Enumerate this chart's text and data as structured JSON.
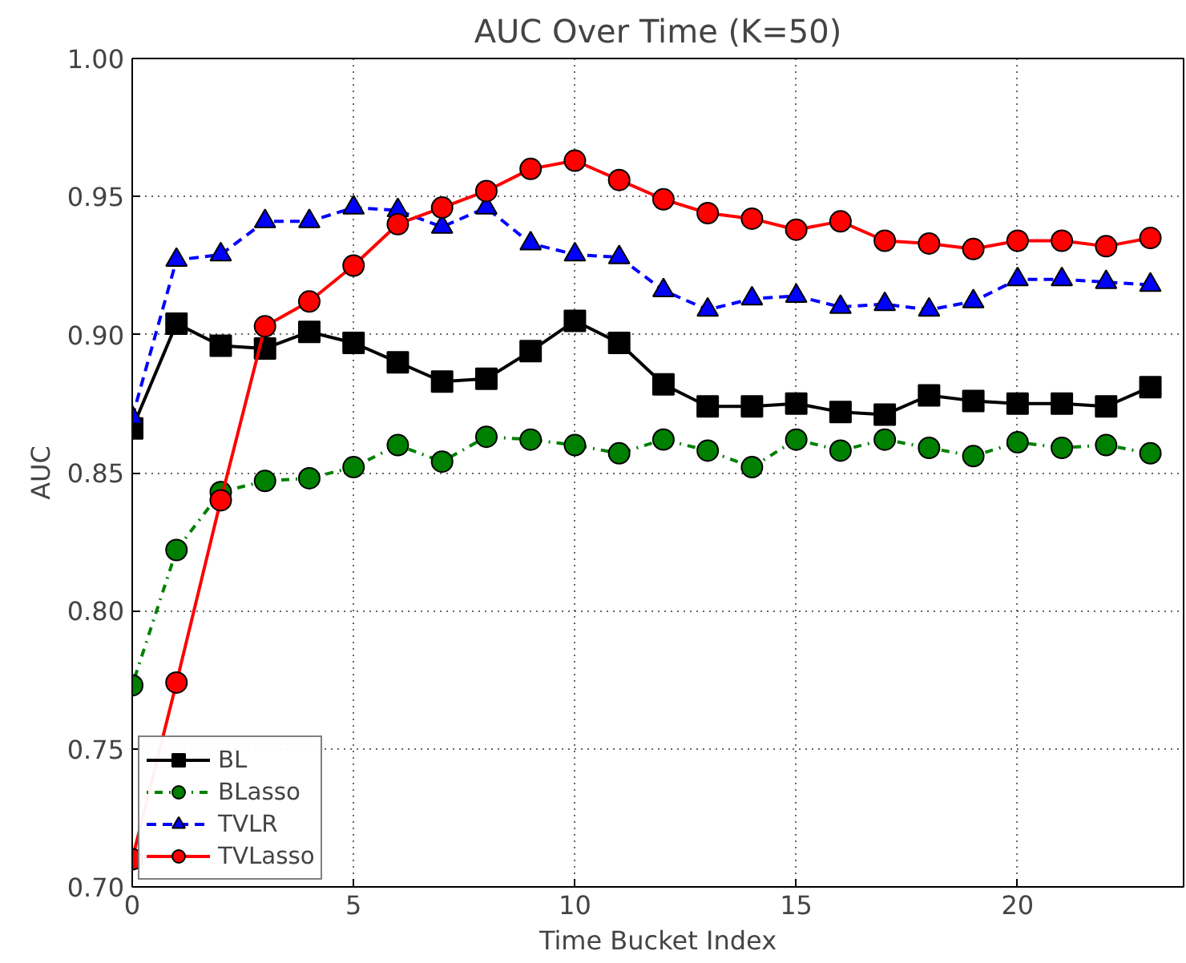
{
  "chart_data": {
    "type": "line",
    "title": "AUC Over Time (K=50)",
    "xlabel": "Time Bucket Index",
    "ylabel": "AUC",
    "x": [
      0,
      1,
      2,
      3,
      4,
      5,
      6,
      7,
      8,
      9,
      10,
      11,
      12,
      13,
      14,
      15,
      16,
      17,
      18,
      19,
      20,
      21,
      22,
      23
    ],
    "series": [
      {
        "name": "BL",
        "color": "#000000",
        "marker": "square",
        "line_style": "solid",
        "values": [
          0.866,
          0.904,
          0.896,
          0.895,
          0.901,
          0.897,
          0.89,
          0.883,
          0.884,
          0.894,
          0.905,
          0.897,
          0.882,
          0.874,
          0.874,
          0.875,
          0.872,
          0.871,
          0.878,
          0.876,
          0.875,
          0.875,
          0.874,
          0.881
        ]
      },
      {
        "name": "BLasso",
        "color": "#008000",
        "marker": "circle",
        "line_style": "dashdot",
        "values": [
          0.773,
          0.822,
          0.843,
          0.847,
          0.848,
          0.852,
          0.86,
          0.854,
          0.863,
          0.862,
          0.86,
          0.857,
          0.862,
          0.858,
          0.852,
          0.862,
          0.858,
          0.862,
          0.859,
          0.856,
          0.861,
          0.859,
          0.86,
          0.857
        ]
      },
      {
        "name": "TVLR",
        "color": "#0000ff",
        "marker": "triangle",
        "line_style": "dashed",
        "values": [
          0.87,
          0.927,
          0.929,
          0.941,
          0.941,
          0.946,
          0.945,
          0.939,
          0.946,
          0.933,
          0.929,
          0.928,
          0.916,
          0.909,
          0.913,
          0.914,
          0.91,
          0.911,
          0.909,
          0.912,
          0.92,
          0.92,
          0.919,
          0.918
        ]
      },
      {
        "name": "TVLasso",
        "color": "#ff0000",
        "marker": "circle",
        "line_style": "solid",
        "values": [
          0.71,
          0.774,
          0.84,
          0.903,
          0.912,
          0.925,
          0.94,
          0.946,
          0.952,
          0.96,
          0.963,
          0.956,
          0.949,
          0.944,
          0.942,
          0.938,
          0.941,
          0.934,
          0.933,
          0.931,
          0.934,
          0.934,
          0.932,
          0.935
        ]
      }
    ],
    "xlim": [
      0,
      23.75
    ],
    "xticks": [
      0,
      5,
      10,
      15,
      20
    ],
    "ylim": [
      0.7,
      1.0
    ],
    "yticks": [
      {
        "value": 0.7,
        "label": "0.70"
      },
      {
        "value": 0.75,
        "label": "0.75"
      },
      {
        "value": 0.8,
        "label": "0.80"
      },
      {
        "value": 0.85,
        "label": "0.85"
      },
      {
        "value": 0.9,
        "label": "0.90"
      },
      {
        "value": 0.95,
        "label": "0.95"
      },
      {
        "value": 1.0,
        "label": "1.00"
      }
    ],
    "grid": true,
    "legend": "bottom left"
  }
}
